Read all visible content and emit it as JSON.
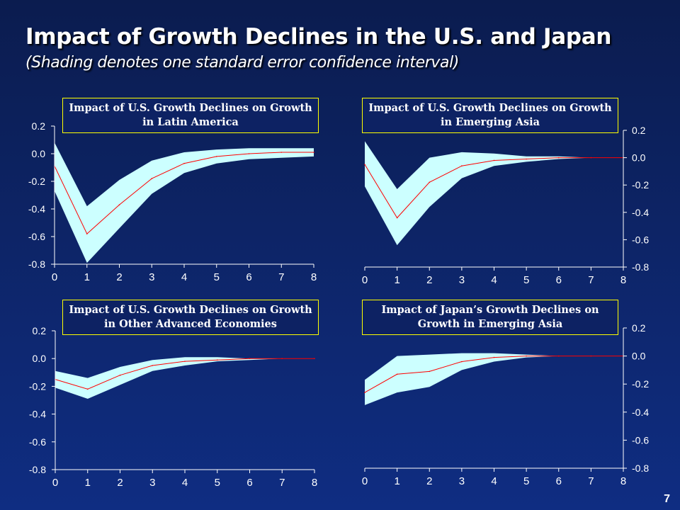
{
  "slide": {
    "title": "Impact of Growth Declines in the U.S. and Japan",
    "subtitle": "(Shading denotes one standard error confidence interval)",
    "page_number": "7"
  },
  "colors": {
    "background": "#0d2466",
    "band": "#ccffff",
    "line": "#ff0000",
    "title_box_border": "#ffff00",
    "text": "#ffffff"
  },
  "chart_data": [
    {
      "type": "area",
      "title": "Impact of U.S. Growth Declines on Growth in Latin America",
      "x": [
        0,
        1,
        2,
        3,
        4,
        5,
        6,
        7,
        8
      ],
      "xlim": [
        0,
        8
      ],
      "ylim": [
        -0.8,
        0.2
      ],
      "yticks": [
        "0.2",
        "0.0",
        "-0.2",
        "-0.4",
        "-0.6",
        "-0.8"
      ],
      "xticks": [
        "0",
        "1",
        "2",
        "3",
        "4",
        "5",
        "6",
        "7",
        "8"
      ],
      "y_axis_side": "left",
      "series": [
        {
          "values": [
            -0.09,
            -0.58,
            -0.37,
            -0.18,
            -0.07,
            -0.02,
            0.0,
            0.01,
            0.01
          ]
        },
        {
          "values": [
            0.08,
            -0.38,
            -0.19,
            -0.05,
            0.01,
            0.03,
            0.04,
            0.04,
            0.04
          ]
        },
        {
          "values": [
            -0.27,
            -0.79,
            -0.54,
            -0.29,
            -0.14,
            -0.07,
            -0.04,
            -0.03,
            -0.02
          ]
        }
      ]
    },
    {
      "type": "area",
      "title": "Impact of U.S. Growth Declines on Growth in Emerging Asia",
      "x": [
        0,
        1,
        2,
        3,
        4,
        5,
        6,
        7,
        8
      ],
      "xlim": [
        0,
        8
      ],
      "ylim": [
        -0.8,
        0.2
      ],
      "yticks": [
        "0.2",
        "0.0",
        "-0.2",
        "-0.4",
        "-0.6",
        "-0.8"
      ],
      "xticks": [
        "0",
        "1",
        "2",
        "3",
        "4",
        "5",
        "6",
        "7",
        "8"
      ],
      "y_axis_side": "right",
      "series": [
        {
          "values": [
            -0.05,
            -0.44,
            -0.18,
            -0.06,
            -0.02,
            -0.01,
            0.0,
            0.0,
            0.0
          ]
        },
        {
          "values": [
            0.12,
            -0.23,
            0.0,
            0.04,
            0.03,
            0.01,
            0.01,
            0.0,
            0.0
          ]
        },
        {
          "values": [
            -0.21,
            -0.64,
            -0.36,
            -0.15,
            -0.06,
            -0.03,
            -0.01,
            0.0,
            0.0
          ]
        }
      ]
    },
    {
      "type": "area",
      "title": "Impact of U.S. Growth Declines on Growth in Other Advanced Economies",
      "x": [
        0,
        1,
        2,
        3,
        4,
        5,
        6,
        7,
        8
      ],
      "xlim": [
        0,
        8
      ],
      "ylim": [
        -0.8,
        0.2
      ],
      "yticks": [
        "0.2",
        "0.0",
        "-0.2",
        "-0.4",
        "-0.6",
        "-0.8"
      ],
      "xticks": [
        "0",
        "1",
        "2",
        "3",
        "4",
        "5",
        "6",
        "7",
        "8"
      ],
      "y_axis_side": "left",
      "series": [
        {
          "values": [
            -0.15,
            -0.22,
            -0.12,
            -0.05,
            -0.02,
            -0.01,
            0.0,
            0.0,
            0.0
          ]
        },
        {
          "values": [
            -0.09,
            -0.14,
            -0.06,
            -0.01,
            0.01,
            0.01,
            0.0,
            0.0,
            0.0
          ]
        },
        {
          "values": [
            -0.21,
            -0.29,
            -0.19,
            -0.09,
            -0.05,
            -0.02,
            -0.01,
            0.0,
            0.0
          ]
        }
      ]
    },
    {
      "type": "area",
      "title": "Impact of Japan’s Growth Declines on Growth in Emerging Asia",
      "x": [
        0,
        1,
        2,
        3,
        4,
        5,
        6,
        7,
        8
      ],
      "xlim": [
        0,
        8
      ],
      "ylim": [
        -0.8,
        0.2
      ],
      "yticks": [
        "0.2",
        "0.0",
        "-0.2",
        "-0.4",
        "-0.6",
        "-0.8"
      ],
      "xticks": [
        "0",
        "1",
        "2",
        "3",
        "4",
        "5",
        "6",
        "7",
        "8"
      ],
      "y_axis_side": "right",
      "series": [
        {
          "values": [
            -0.26,
            -0.13,
            -0.11,
            -0.04,
            -0.01,
            0.0,
            0.0,
            0.0,
            0.0
          ]
        },
        {
          "values": [
            -0.17,
            0.0,
            0.01,
            0.02,
            0.02,
            0.01,
            0.0,
            0.0,
            0.0
          ]
        },
        {
          "values": [
            -0.35,
            -0.26,
            -0.22,
            -0.1,
            -0.04,
            -0.01,
            0.0,
            0.0,
            0.0
          ]
        }
      ]
    }
  ]
}
